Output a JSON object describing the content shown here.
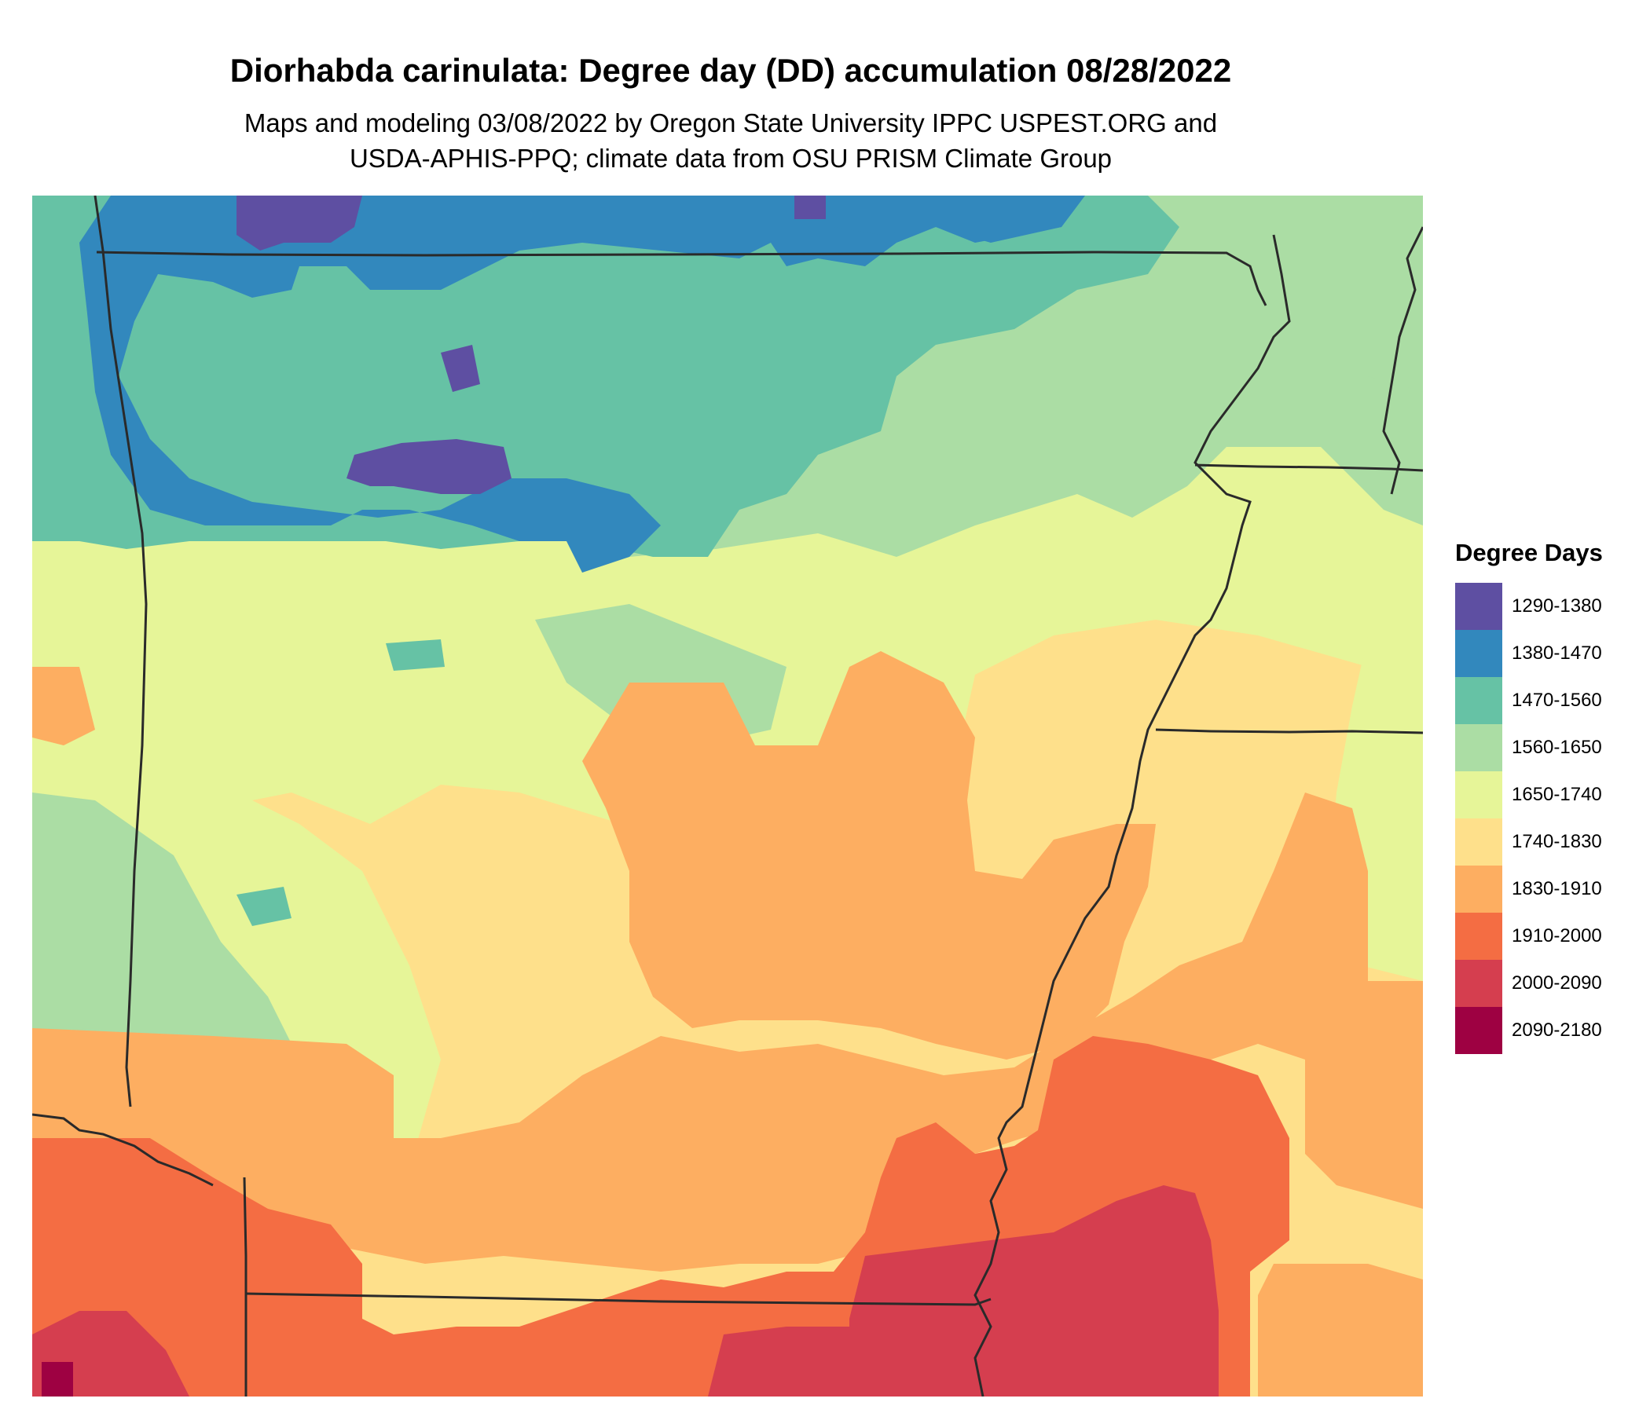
{
  "header": {
    "title": "Diorhabda carinulata: Degree day (DD) accumulation 08/28/2022",
    "subtitle_line1": "Maps and modeling 03/08/2022 by Oregon State University IPPC USPEST.ORG and",
    "subtitle_line2": "USDA-APHIS-PPQ; climate data from OSU PRISM Climate Group"
  },
  "legend": {
    "title": "Degree Days",
    "bins": [
      {
        "label": "1290-1380",
        "color": "#5E4FA2"
      },
      {
        "label": "1380-1470",
        "color": "#3288BD"
      },
      {
        "label": "1470-1560",
        "color": "#66C2A5"
      },
      {
        "label": "1560-1650",
        "color": "#ABDDA4"
      },
      {
        "label": "1650-1740",
        "color": "#E6F598"
      },
      {
        "label": "1740-1830",
        "color": "#FEE08B"
      },
      {
        "label": "1830-1910",
        "color": "#FDAE61"
      },
      {
        "label": "1910-2000",
        "color": "#F46D43"
      },
      {
        "label": "2000-2090",
        "color": "#D53E4F"
      },
      {
        "label": "2090-2180",
        "color": "#9E0142"
      }
    ]
  }
}
